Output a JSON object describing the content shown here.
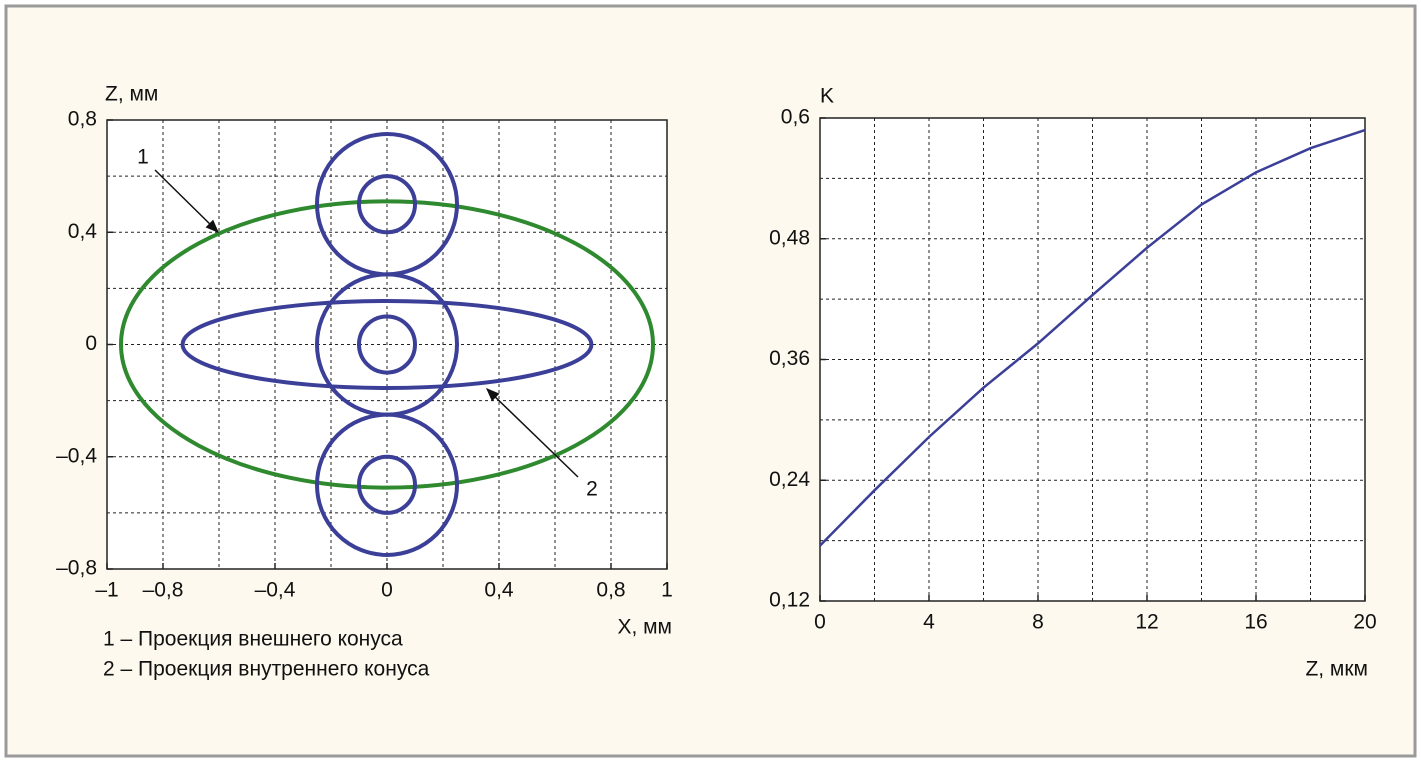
{
  "chart_data": [
    {
      "type": "ellipse",
      "ylabel": "Z, мм",
      "xlabel": "X, мм",
      "xlim": [
        -1,
        1
      ],
      "ylim": [
        -0.8,
        0.8
      ],
      "xticks": [
        {
          "value": -1,
          "label": "–1"
        },
        {
          "value": -0.8,
          "label": "–0,8"
        },
        {
          "value": -0.4,
          "label": "–0,4"
        },
        0,
        {
          "value": 0.4,
          "label": "0,4"
        },
        {
          "value": 0.8,
          "label": "0,8"
        },
        1
      ],
      "yticks": [
        {
          "value": 0.8,
          "label": "0,8"
        },
        {
          "value": 0.4,
          "label": "0,4"
        },
        0,
        {
          "value": -0.4,
          "label": "–0,4"
        },
        {
          "value": -0.8,
          "label": "–0,8"
        }
      ],
      "xgrid": [
        -0.8,
        -0.6,
        -0.4,
        -0.2,
        0,
        0.2,
        0.4,
        0.6,
        0.8
      ],
      "ygrid": [
        0.6,
        0.4,
        0.2,
        0,
        -0.2,
        -0.4,
        -0.6
      ],
      "shapes": [
        {
          "color": "#2f8a2f",
          "cx": 0,
          "cy": 0,
          "rx": 0.95,
          "ry": 0.51
        },
        {
          "color": "#3b3f98",
          "cx": 0,
          "cy": 0,
          "rx": 0.73,
          "ry": 0.155
        },
        {
          "color": "#3b3f98",
          "cx": 0,
          "cy": 0.5,
          "rx": 0.25,
          "ry": 0.25
        },
        {
          "color": "#3b3f98",
          "cx": 0,
          "cy": 0.5,
          "rx": 0.1,
          "ry": 0.1
        },
        {
          "color": "#3b3f98",
          "cx": 0,
          "cy": 0,
          "rx": 0.25,
          "ry": 0.25
        },
        {
          "color": "#3b3f98",
          "cx": 0,
          "cy": 0,
          "rx": 0.1,
          "ry": 0.1
        },
        {
          "color": "#3b3f98",
          "cx": 0,
          "cy": -0.5,
          "rx": 0.25,
          "ry": 0.25
        },
        {
          "color": "#3b3f98",
          "cx": 0,
          "cy": -0.5,
          "rx": 0.1,
          "ry": 0.1
        }
      ],
      "annotations": [
        "1",
        "2"
      ],
      "notes": [
        "1 – Проекция внешнего конуса",
        "2 – Проекция внутреннего конуса"
      ]
    },
    {
      "type": "line",
      "ylabel": "K",
      "xlabel": "Z, мкм",
      "xlim": [
        0,
        20
      ],
      "ylim": [
        0.12,
        0.6
      ],
      "xticks": [
        0,
        4,
        8,
        12,
        16,
        20
      ],
      "yticks": [
        {
          "value": 0.6,
          "label": "0,6"
        },
        {
          "value": 0.48,
          "label": "0,48"
        },
        {
          "value": 0.36,
          "label": "0,36"
        },
        {
          "value": 0.24,
          "label": "0,24"
        },
        {
          "value": 0.12,
          "label": "0,12"
        }
      ],
      "xgrid": [
        2,
        4,
        6,
        8,
        10,
        12,
        14,
        16,
        18
      ],
      "ygrid": [
        0.54,
        0.48,
        0.42,
        0.36,
        0.3,
        0.24,
        0.18
      ],
      "x": [
        0,
        2,
        4,
        6,
        8,
        10,
        12,
        14,
        16,
        18,
        20
      ],
      "series": [
        {
          "color": "#3b3f98",
          "values": [
            0.175,
            0.23,
            0.283,
            0.332,
            0.376,
            0.424,
            0.471,
            0.514,
            0.546,
            0.57,
            0.588
          ]
        }
      ]
    }
  ]
}
